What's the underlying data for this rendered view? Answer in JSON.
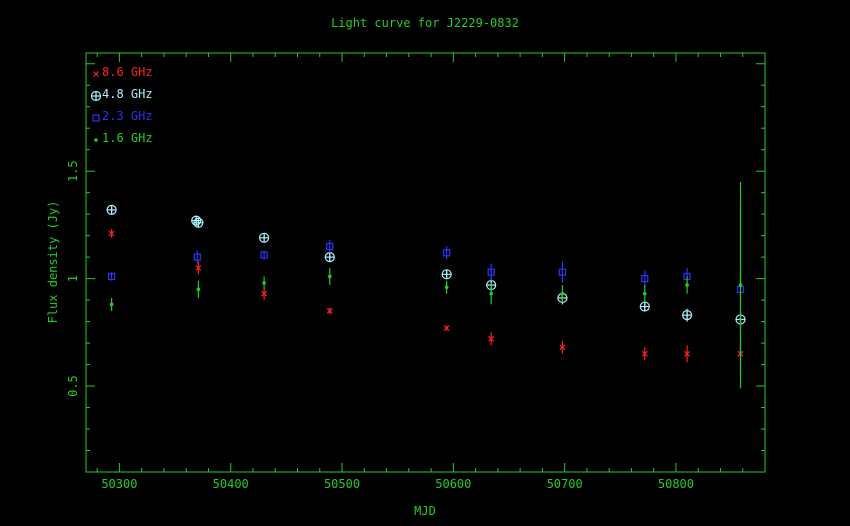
{
  "chart_data": {
    "type": "scatter",
    "title": "Light curve for J2229-0832",
    "xlabel": "MJD",
    "ylabel": "Flux density (Jy)",
    "xlim": [
      50270,
      50880
    ],
    "ylim": [
      0.1,
      2.05
    ],
    "xticks": [
      50300,
      50400,
      50500,
      50600,
      50700,
      50800
    ],
    "xtick_labels": [
      "50300",
      "50400",
      "50500",
      "50600",
      "50700",
      "50800"
    ],
    "yticks": [
      0.5,
      1.0,
      1.5
    ],
    "ytick_labels": [
      "0.5",
      "1",
      "1.5"
    ],
    "grid": false,
    "legend_position": "top-left",
    "colors": {
      "background": "#000000",
      "axes": "#22cc22",
      "title": "#22cc22"
    },
    "series": [
      {
        "name": "8.6 GHz",
        "marker": "x",
        "color": "#ff2020",
        "points": [
          {
            "x": 50293,
            "y": 1.21,
            "err": 0.02
          },
          {
            "x": 50371,
            "y": 1.05,
            "err": 0.03
          },
          {
            "x": 50430,
            "y": 0.93,
            "err": 0.03
          },
          {
            "x": 50489,
            "y": 0.85,
            "err": 0.015
          },
          {
            "x": 50594,
            "y": 0.77,
            "err": 0.01
          },
          {
            "x": 50634,
            "y": 0.72,
            "err": 0.03
          },
          {
            "x": 50698,
            "y": 0.68,
            "err": 0.03
          },
          {
            "x": 50772,
            "y": 0.65,
            "err": 0.03
          },
          {
            "x": 50810,
            "y": 0.65,
            "err": 0.04
          },
          {
            "x": 50858,
            "y": 0.65,
            "err": 0.04
          }
        ]
      },
      {
        "name": "4.8 GHz",
        "marker": "circle-plus",
        "color": "#aaf0ff",
        "points": [
          {
            "x": 50293,
            "y": 1.32,
            "err": 0.02
          },
          {
            "x": 50369,
            "y": 1.27,
            "err": 0.02
          },
          {
            "x": 50371,
            "y": 1.26,
            "err": 0.02
          },
          {
            "x": 50430,
            "y": 1.19,
            "err": 0.02
          },
          {
            "x": 50489,
            "y": 1.1,
            "err": 0.02
          },
          {
            "x": 50594,
            "y": 1.02,
            "err": 0.02
          },
          {
            "x": 50634,
            "y": 0.97,
            "err": 0.03
          },
          {
            "x": 50698,
            "y": 0.91,
            "err": 0.03
          },
          {
            "x": 50772,
            "y": 0.87,
            "err": 0.02
          },
          {
            "x": 50810,
            "y": 0.83,
            "err": 0.03
          },
          {
            "x": 50858,
            "y": 0.81,
            "err": 0.04
          }
        ]
      },
      {
        "name": "2.3 GHz",
        "marker": "square",
        "color": "#3030ff",
        "points": [
          {
            "x": 50293,
            "y": 1.01,
            "err": 0.02
          },
          {
            "x": 50370,
            "y": 1.1,
            "err": 0.03
          },
          {
            "x": 50430,
            "y": 1.11,
            "err": 0.02
          },
          {
            "x": 50489,
            "y": 1.15,
            "err": 0.03
          },
          {
            "x": 50594,
            "y": 1.12,
            "err": 0.03
          },
          {
            "x": 50634,
            "y": 1.03,
            "err": 0.04
          },
          {
            "x": 50698,
            "y": 1.03,
            "err": 0.05
          },
          {
            "x": 50772,
            "y": 1.0,
            "err": 0.04
          },
          {
            "x": 50810,
            "y": 1.01,
            "err": 0.04
          },
          {
            "x": 50858,
            "y": 0.95,
            "err": 0.4
          }
        ]
      },
      {
        "name": "1.6 GHz",
        "marker": "dot",
        "color": "#22cc22",
        "points": [
          {
            "x": 50293,
            "y": 0.88,
            "err": 0.03
          },
          {
            "x": 50371,
            "y": 0.95,
            "err": 0.04
          },
          {
            "x": 50430,
            "y": 0.98,
            "err": 0.03
          },
          {
            "x": 50489,
            "y": 1.01,
            "err": 0.04
          },
          {
            "x": 50594,
            "y": 0.96,
            "err": 0.03
          },
          {
            "x": 50634,
            "y": 0.93,
            "err": 0.05
          },
          {
            "x": 50698,
            "y": 0.93,
            "err": 0.04
          },
          {
            "x": 50772,
            "y": 0.93,
            "err": 0.04
          },
          {
            "x": 50810,
            "y": 0.97,
            "err": 0.04
          },
          {
            "x": 50858,
            "y": 0.97,
            "err": 0.48
          }
        ]
      }
    ]
  }
}
